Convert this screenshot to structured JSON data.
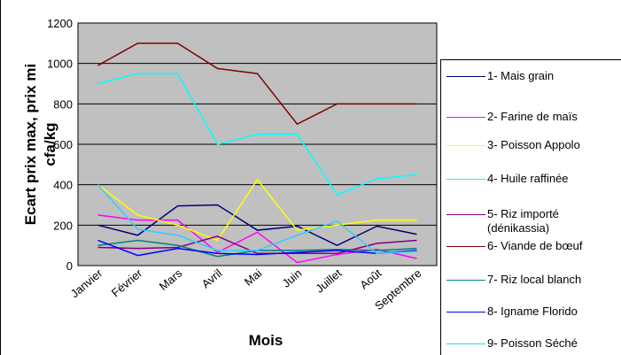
{
  "chart_data": {
    "type": "line",
    "y_label": [
      "Ecart prix max, prix mi",
      "cfa/kg"
    ],
    "x_label": "Mois",
    "categories": [
      "Janvier",
      "Février",
      "Mars",
      "Avril",
      "Mai",
      "Juin",
      "Juillet",
      "Août",
      "Septembre"
    ],
    "ylim": [
      0,
      1200
    ],
    "yticks": [
      0,
      200,
      400,
      600,
      800,
      1000,
      1200
    ],
    "grid": true,
    "series": [
      {
        "name": "1- Mais grain",
        "color": "#000080",
        "values": [
          200,
          150,
          295,
          300,
          175,
          195,
          100,
          195,
          155
        ]
      },
      {
        "name": "2- Farine de maïs",
        "color": "#ff00ff",
        "values": [
          250,
          225,
          225,
          65,
          165,
          15,
          55,
          80,
          35
        ]
      },
      {
        "name": "3- Poisson Appolo",
        "color": "#ffff00",
        "values": [
          400,
          250,
          200,
          125,
          425,
          175,
          200,
          225,
          225
        ]
      },
      {
        "name": "4- Huile raffinée",
        "color": "#00ffff",
        "values": [
          900,
          950,
          950,
          600,
          650,
          650,
          350,
          430,
          450
        ]
      },
      {
        "name": "5- Riz importé (dénikassia)",
        "color": "#800080",
        "values": [
          90,
          85,
          90,
          145,
          60,
          60,
          60,
          110,
          125
        ]
      },
      {
        "name": "6- Viande de bœuf",
        "color": "#800000",
        "values": [
          990,
          1100,
          1100,
          975,
          950,
          700,
          800,
          800,
          800
        ]
      },
      {
        "name": "7- Riz local blanch",
        "color": "#008080",
        "values": [
          100,
          125,
          100,
          45,
          75,
          75,
          80,
          75,
          85
        ]
      },
      {
        "name": "8- Igname Florido",
        "color": "#0000ff",
        "values": [
          125,
          50,
          85,
          60,
          55,
          65,
          75,
          60,
          75
        ]
      },
      {
        "name": "9- Poisson Séché",
        "color": "#33ccff",
        "values": [
          400,
          180,
          150,
          75,
          75,
          150,
          220,
          60,
          70
        ]
      }
    ]
  }
}
